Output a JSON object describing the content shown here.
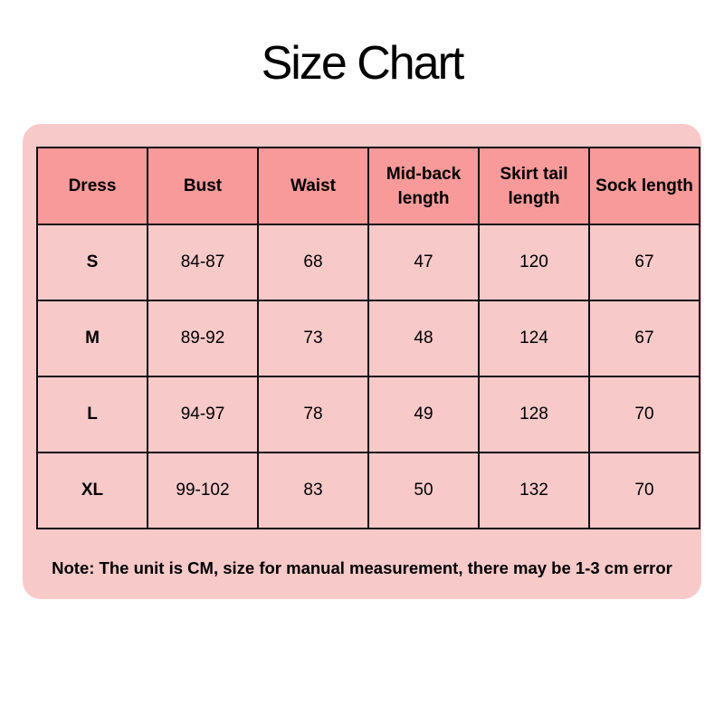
{
  "title": "Size Chart",
  "colors": {
    "panel": "#f8c9c9",
    "header": "#f99a9a",
    "border": "#111111"
  },
  "table": {
    "headers": [
      "Dress",
      "Bust",
      "Waist",
      "Mid-back length",
      "Skirt tail length",
      "Sock length"
    ],
    "rows": [
      [
        "S",
        "84-87",
        "68",
        "47",
        "120",
        "67"
      ],
      [
        "M",
        "89-92",
        "73",
        "48",
        "124",
        "67"
      ],
      [
        "L",
        "94-97",
        "78",
        "49",
        "128",
        "70"
      ],
      [
        "XL",
        "99-102",
        "83",
        "50",
        "132",
        "70"
      ]
    ]
  },
  "note": "Note: The unit is CM, size for manual measurement, there may be 1-3 cm error"
}
